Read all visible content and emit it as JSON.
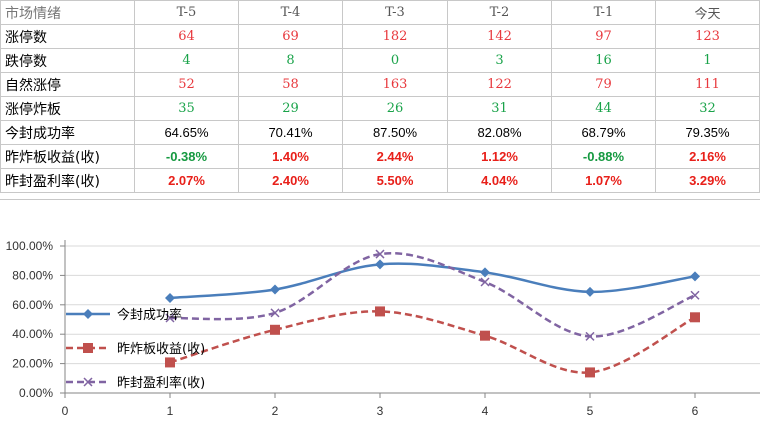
{
  "table": {
    "header": [
      "市场情绪",
      "T-5",
      "T-4",
      "T-3",
      "T-2",
      "T-1",
      "今天"
    ],
    "rows": [
      {
        "label": "涨停数",
        "values": [
          "64",
          "69",
          "182",
          "142",
          "97",
          "123"
        ],
        "style": "red"
      },
      {
        "label": "跌停数",
        "values": [
          "4",
          "8",
          "0",
          "3",
          "16",
          "1"
        ],
        "style": "green"
      },
      {
        "label": "自然涨停",
        "values": [
          "52",
          "58",
          "163",
          "122",
          "79",
          "111"
        ],
        "style": "red"
      },
      {
        "label": "涨停炸板",
        "values": [
          "35",
          "29",
          "26",
          "31",
          "44",
          "32"
        ],
        "style": "green"
      },
      {
        "label": "今封成功率",
        "values": [
          "64.65%",
          "70.41%",
          "87.50%",
          "82.08%",
          "68.79%",
          "79.35%"
        ],
        "style": "blk"
      },
      {
        "label": "昨炸板收益(收)",
        "values": [
          "-0.38%",
          "1.40%",
          "2.44%",
          "1.12%",
          "-0.88%",
          "2.16%"
        ],
        "style": "signed"
      },
      {
        "label": "昨封盈利率(收)",
        "values": [
          "2.07%",
          "2.40%",
          "5.50%",
          "4.04%",
          "1.07%",
          "3.29%"
        ],
        "style": "bred"
      }
    ]
  },
  "colors": {
    "series1": "#4a7ebb",
    "series2": "#c0504d",
    "series3": "#8064a2"
  },
  "chart_data": {
    "type": "line",
    "x": [
      1,
      2,
      3,
      4,
      5,
      6
    ],
    "xlim": [
      0,
      6.5
    ],
    "ylim": [
      0,
      100
    ],
    "xticks": [
      "0",
      "1",
      "2",
      "3",
      "4",
      "5",
      "6"
    ],
    "yticks": [
      "0.00%",
      "20.00%",
      "40.00%",
      "60.00%",
      "80.00%",
      "100.00%"
    ],
    "grid": "horizontal",
    "legend": "left",
    "series": [
      {
        "name": "今封成功率",
        "values": [
          64.65,
          70.41,
          87.5,
          82.08,
          68.79,
          79.35
        ],
        "marker": "diamond",
        "line": "solid"
      },
      {
        "name": "昨炸板收益(收)",
        "values": [
          20.8,
          43.0,
          55.5,
          39.0,
          14.0,
          51.5
        ],
        "marker": "square",
        "line": "dashed"
      },
      {
        "name": "昨封盈利率(收)",
        "values": [
          51.0,
          54.5,
          94.5,
          75.5,
          38.5,
          66.5
        ],
        "marker": "x",
        "line": "dashed"
      }
    ]
  }
}
